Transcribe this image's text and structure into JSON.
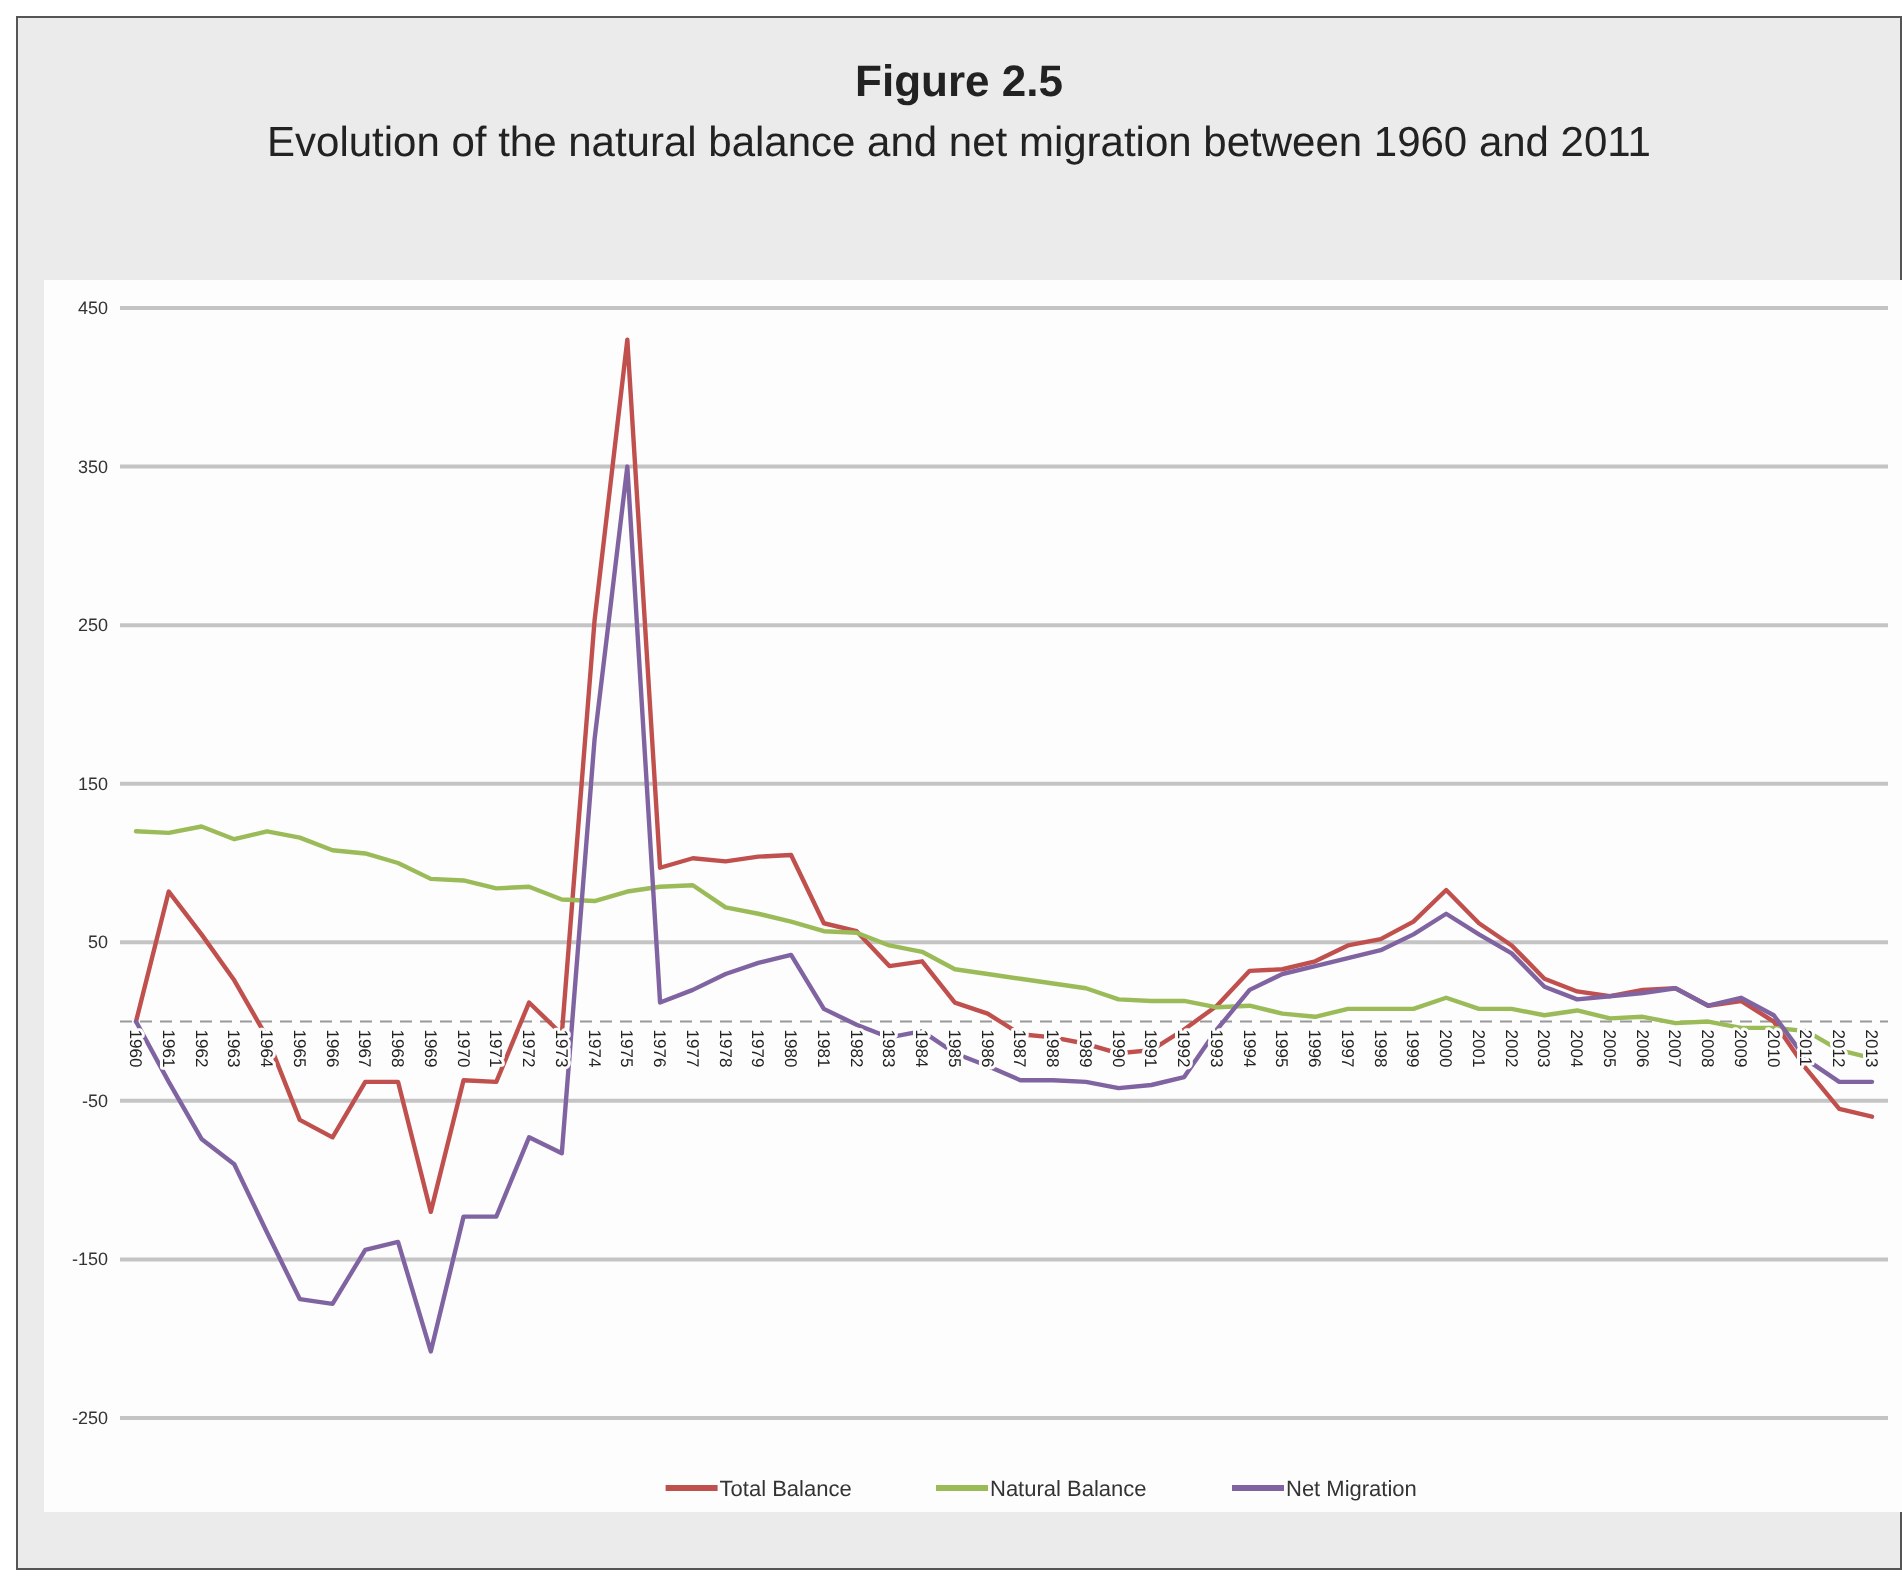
{
  "chart_data": {
    "type": "line",
    "title": "Figure 2.5",
    "subtitle": "Evolution of the natural balance and net migration between 1960 and 2011",
    "categories": [
      "1960",
      "1961",
      "1962",
      "1963",
      "1964",
      "1965",
      "1966",
      "1967",
      "1968",
      "1969",
      "1970",
      "1971",
      "1972",
      "1973",
      "1974",
      "1975",
      "1976",
      "1977",
      "1978",
      "1979",
      "1980",
      "1981",
      "1982",
      "1983",
      "1984",
      "1985",
      "1986",
      "1987",
      "1988",
      "1989",
      "1990",
      "1991",
      "1992",
      "1993",
      "1994",
      "1995",
      "1996",
      "1997",
      "1998",
      "1999",
      "2000",
      "2001",
      "2002",
      "2003",
      "2004",
      "2005",
      "2006",
      "2007",
      "2008",
      "2009",
      "2010",
      "2011",
      "2012",
      "2013"
    ],
    "series": [
      {
        "name": "Total Balance",
        "color": "#c0504d",
        "values": [
          0,
          82,
          55,
          26,
          -10,
          -62,
          -73,
          -38,
          -38,
          -120,
          -37,
          -38,
          12,
          -8,
          253,
          430,
          97,
          103,
          101,
          104,
          105,
          62,
          57,
          35,
          38,
          12,
          5,
          -8,
          -10,
          -14,
          -20,
          -18,
          -5,
          10,
          32,
          33,
          38,
          48,
          52,
          63,
          83,
          62,
          48,
          27,
          19,
          16,
          20,
          21,
          10,
          13,
          0,
          -30,
          -55,
          -60
        ]
      },
      {
        "name": "Natural Balance",
        "color": "#9bbb59",
        "values": [
          120,
          119,
          123,
          115,
          120,
          116,
          108,
          106,
          100,
          90,
          89,
          84,
          85,
          77,
          76,
          82,
          85,
          86,
          72,
          68,
          63,
          57,
          56,
          48,
          44,
          33,
          30,
          27,
          24,
          21,
          14,
          13,
          13,
          9,
          10,
          5,
          3,
          8,
          8,
          8,
          15,
          8,
          8,
          4,
          7,
          2,
          3,
          -1,
          0,
          -4,
          -4,
          -6,
          -18,
          -23
        ]
      },
      {
        "name": "Net Migration",
        "color": "#8064a2",
        "values": [
          0,
          -38,
          -74,
          -90,
          -133,
          -175,
          -178,
          -144,
          -139,
          -208,
          -123,
          -123,
          -73,
          -83,
          178,
          350,
          12,
          20,
          30,
          37,
          42,
          8,
          -2,
          -10,
          -6,
          -20,
          -28,
          -37,
          -37,
          -38,
          -42,
          -40,
          -35,
          -5,
          20,
          30,
          35,
          40,
          45,
          55,
          68,
          55,
          43,
          22,
          14,
          16,
          18,
          21,
          10,
          15,
          4,
          -24,
          -38,
          -38
        ]
      }
    ],
    "ylim": [
      -250,
      450
    ],
    "yticks": [
      -250,
      -150,
      -50,
      50,
      150,
      250,
      350,
      450
    ],
    "grid": "y",
    "ref_lines": [
      {
        "axis": "y",
        "value": 0,
        "line_style": "dashed",
        "color": "#999999"
      }
    ],
    "legend": "bottom",
    "marker": "none",
    "line_style": "solid"
  }
}
